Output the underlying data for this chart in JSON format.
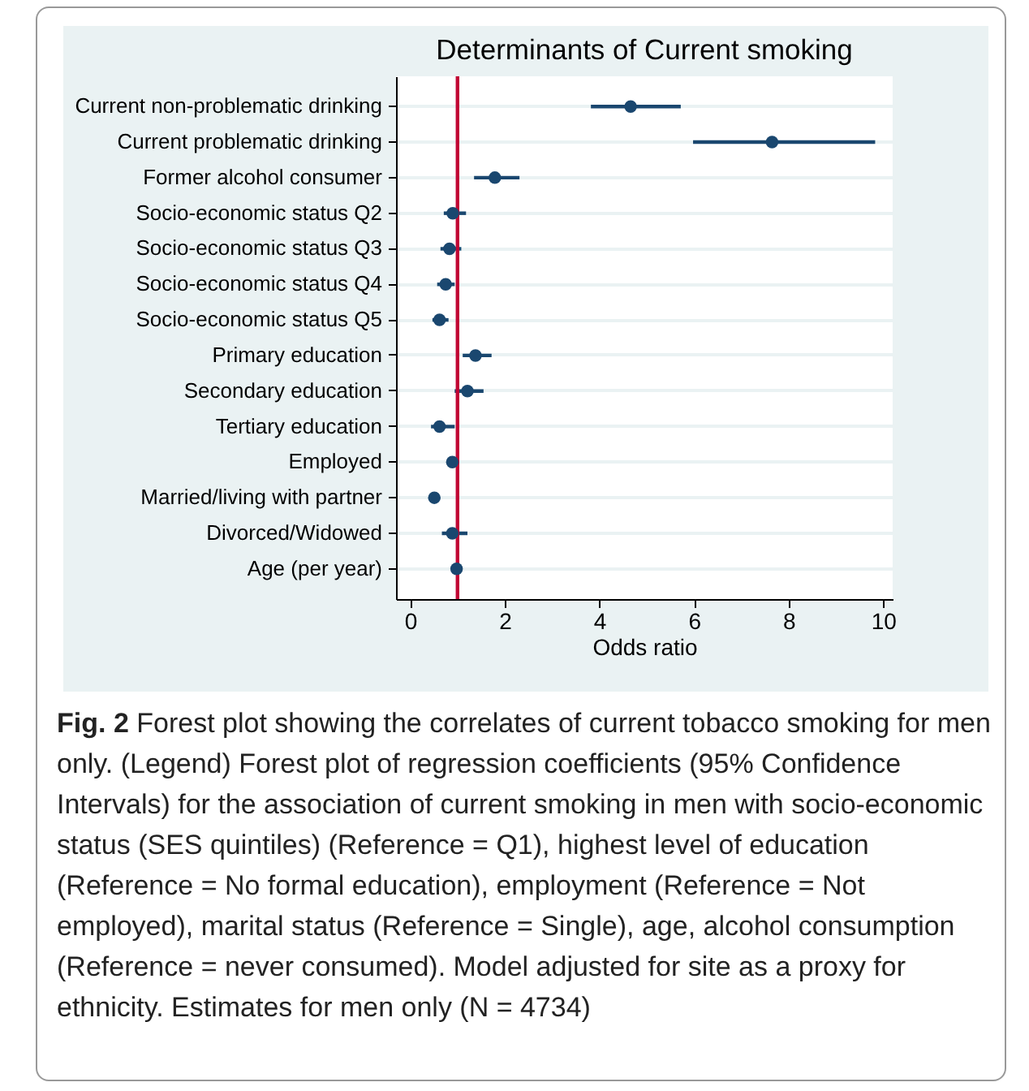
{
  "chart_data": {
    "type": "scatter",
    "title": "Determinants of Current smoking",
    "xlabel": "Odds ratio",
    "orientation": "horizontal",
    "categories": [
      "Current non-problematic drinking",
      "Current problematic drinking",
      "Former alcohol consumer",
      "Socio-economic status Q2",
      "Socio-economic status Q3",
      "Socio-economic status Q4",
      "Socio-economic status Q5",
      "Primary education",
      "Secondary education",
      "Tertiary education",
      "Employed",
      "Married/living with partner",
      "Divorced/Widowed",
      "Age (per year)"
    ],
    "color": "#1a476f",
    "values": [
      4.66,
      7.65,
      1.79,
      0.9,
      0.83,
      0.75,
      0.62,
      1.38,
      1.21,
      0.62,
      0.89,
      0.51,
      0.89,
      0.98
    ],
    "errors": [
      [
        3.82,
        5.72
      ],
      [
        5.98,
        9.83
      ],
      [
        1.35,
        2.31
      ],
      [
        0.71,
        1.18
      ],
      [
        0.64,
        1.08
      ],
      [
        0.57,
        0.94
      ],
      [
        0.47,
        0.81
      ],
      [
        1.11,
        1.72
      ],
      [
        0.94,
        1.55
      ],
      [
        0.44,
        0.94
      ],
      [
        0.8,
        0.98
      ],
      [
        0.42,
        0.62
      ],
      [
        0.67,
        1.21
      ],
      null
    ],
    "xlim": [
      -0.3,
      10.2
    ],
    "xticks": [
      0,
      2,
      4,
      6,
      8,
      10
    ],
    "grid": "y",
    "marker": "circle",
    "ref_lines": [
      {
        "axis": "x",
        "value": 1,
        "color": "#c10534"
      }
    ],
    "annotations": [
      "Fig. 2 Forest plot showing the correlates of current tobacco smoking for men only. (Legend) Forest plot of regression coefficients (95% Confidence Intervals) for the association of current smoking in men with socio-economic status (SES quintiles) (Reference = Q1), highest level of education (Reference = No formal education), employment (Reference = Not employed), marital status (Reference = Single), age, alcohol consumption (Reference = never consumed). Model adjusted for site as a proxy for ethnicity. Estimates for men only (N = 4734)"
    ]
  }
}
